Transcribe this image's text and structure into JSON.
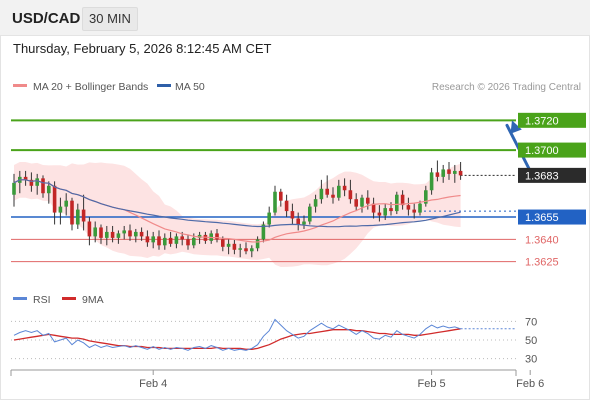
{
  "header": {
    "symbol": "USD/CAD",
    "timeframe": "30 MIN",
    "datetime": "Thursday, February 5, 2026 8:12:45 AM CET"
  },
  "legend": {
    "items": [
      {
        "label": "MA 20 + Bollinger Bands",
        "color": "#f08a8a"
      },
      {
        "label": "MA 50",
        "color": "#2e5fa8"
      }
    ],
    "credit": "Research © 2026 Trading Central"
  },
  "colors": {
    "up": "#3a9a3a",
    "down": "#c22626",
    "resistance": "#4aa31a",
    "support_strong": "#2262c4",
    "support_weak": "#e06666",
    "current": "#2b2b2b",
    "arrow": "#2f66b3",
    "band_fill": "#fde3e3",
    "ma20": "#f08a8a",
    "ma50": "#4e6aa8",
    "rsi": "#5b86d6",
    "rsi_ma": "#d12b2b"
  },
  "chart_data": {
    "type": "candlestick",
    "symbol": "USD/CAD",
    "timeframe": "30 MIN",
    "ylim": [
      1.361,
      1.3735
    ],
    "x_tick_labels": [
      {
        "label": "Feb 4",
        "index": 24
      },
      {
        "label": "Feb 5",
        "index": 72
      },
      {
        "label": "Feb 6",
        "index": 89
      }
    ],
    "levels": [
      {
        "value": 1.372,
        "label": "1.3720",
        "kind": "resistance"
      },
      {
        "value": 1.37,
        "label": "1.3700",
        "kind": "resistance"
      },
      {
        "value": 1.3683,
        "label": "1.3683",
        "kind": "current"
      },
      {
        "value": 1.3655,
        "label": "1.3655",
        "kind": "support_strong"
      },
      {
        "value": 1.364,
        "label": "1.3640",
        "kind": "support_weak"
      },
      {
        "value": 1.3625,
        "label": "1.3625",
        "kind": "support_weak"
      }
    ],
    "projection": {
      "from": [
        88,
        1.3683
      ],
      "to": [
        95,
        1.372
      ]
    },
    "series": [
      {
        "name": "MA 20 + Bollinger Bands",
        "type": "ma_band"
      },
      {
        "name": "MA 50",
        "type": "ma"
      }
    ],
    "ohlc": [
      [
        1.367,
        1.3684,
        1.3662,
        1.3678
      ],
      [
        1.3678,
        1.3686,
        1.3671,
        1.3682
      ],
      [
        1.3682,
        1.3686,
        1.3676,
        1.368
      ],
      [
        1.368,
        1.3685,
        1.3672,
        1.3676
      ],
      [
        1.3676,
        1.3684,
        1.367,
        1.3681
      ],
      [
        1.3681,
        1.3683,
        1.3668,
        1.3671
      ],
      [
        1.3671,
        1.3679,
        1.3664,
        1.3676
      ],
      [
        1.3676,
        1.3679,
        1.365,
        1.3658
      ],
      [
        1.3658,
        1.3668,
        1.365,
        1.3662
      ],
      [
        1.3662,
        1.3671,
        1.3656,
        1.3666
      ],
      [
        1.3666,
        1.3668,
        1.3646,
        1.365
      ],
      [
        1.365,
        1.3664,
        1.3647,
        1.366
      ],
      [
        1.366,
        1.367,
        1.3646,
        1.3652
      ],
      [
        1.3652,
        1.3655,
        1.3636,
        1.3642
      ],
      [
        1.3642,
        1.3652,
        1.3638,
        1.3648
      ],
      [
        1.3648,
        1.365,
        1.3637,
        1.3641
      ],
      [
        1.3641,
        1.3649,
        1.3636,
        1.3645
      ],
      [
        1.3645,
        1.3649,
        1.3638,
        1.3641
      ],
      [
        1.3641,
        1.3646,
        1.3637,
        1.3644
      ],
      [
        1.3644,
        1.3649,
        1.364,
        1.3646
      ],
      [
        1.3646,
        1.365,
        1.3639,
        1.3642
      ],
      [
        1.3642,
        1.3647,
        1.3638,
        1.3645
      ],
      [
        1.3645,
        1.3648,
        1.3639,
        1.3642
      ],
      [
        1.3642,
        1.3646,
        1.3635,
        1.3638
      ],
      [
        1.3638,
        1.3645,
        1.3634,
        1.3642
      ],
      [
        1.3642,
        1.3646,
        1.3633,
        1.3636
      ],
      [
        1.3636,
        1.3644,
        1.3633,
        1.3641
      ],
      [
        1.3641,
        1.3645,
        1.3635,
        1.3637
      ],
      [
        1.3637,
        1.3644,
        1.3634,
        1.3642
      ],
      [
        1.3642,
        1.3645,
        1.3636,
        1.364
      ],
      [
        1.364,
        1.3643,
        1.3633,
        1.3636
      ],
      [
        1.3636,
        1.3644,
        1.3634,
        1.3641
      ],
      [
        1.3641,
        1.3645,
        1.3637,
        1.3643
      ],
      [
        1.3643,
        1.3645,
        1.3637,
        1.3639
      ],
      [
        1.3639,
        1.3646,
        1.3637,
        1.3644
      ],
      [
        1.3644,
        1.3647,
        1.3638,
        1.364
      ],
      [
        1.364,
        1.3642,
        1.3632,
        1.3635
      ],
      [
        1.3635,
        1.364,
        1.363,
        1.3637
      ],
      [
        1.3637,
        1.364,
        1.363,
        1.3633
      ],
      [
        1.3633,
        1.3637,
        1.3628,
        1.3634
      ],
      [
        1.3634,
        1.3638,
        1.363,
        1.3632
      ],
      [
        1.3632,
        1.3636,
        1.3628,
        1.3634
      ],
      [
        1.3634,
        1.3642,
        1.3632,
        1.364
      ],
      [
        1.364,
        1.3652,
        1.3638,
        1.365
      ],
      [
        1.365,
        1.3662,
        1.3648,
        1.3658
      ],
      [
        1.3658,
        1.3676,
        1.3656,
        1.3672
      ],
      [
        1.3672,
        1.3674,
        1.3662,
        1.3666
      ],
      [
        1.3666,
        1.367,
        1.3655,
        1.3659
      ],
      [
        1.3659,
        1.3664,
        1.365,
        1.3654
      ],
      [
        1.3654,
        1.3658,
        1.3646,
        1.365
      ],
      [
        1.365,
        1.3656,
        1.3647,
        1.3652
      ],
      [
        1.3652,
        1.3664,
        1.365,
        1.3662
      ],
      [
        1.3662,
        1.367,
        1.3658,
        1.3667
      ],
      [
        1.3667,
        1.368,
        1.3664,
        1.3674
      ],
      [
        1.3674,
        1.3683,
        1.3668,
        1.367
      ],
      [
        1.367,
        1.3675,
        1.3664,
        1.3668
      ],
      [
        1.3668,
        1.368,
        1.3666,
        1.3676
      ],
      [
        1.3676,
        1.3681,
        1.3669,
        1.3673
      ],
      [
        1.3673,
        1.368,
        1.3664,
        1.3667
      ],
      [
        1.3667,
        1.3671,
        1.3659,
        1.3662
      ],
      [
        1.3662,
        1.367,
        1.3658,
        1.3668
      ],
      [
        1.3668,
        1.3673,
        1.366,
        1.3664
      ],
      [
        1.3664,
        1.3668,
        1.3654,
        1.3658
      ],
      [
        1.3658,
        1.3663,
        1.3652,
        1.3656
      ],
      [
        1.3656,
        1.3664,
        1.3653,
        1.3661
      ],
      [
        1.3661,
        1.3665,
        1.3656,
        1.3659
      ],
      [
        1.3659,
        1.3672,
        1.3657,
        1.367
      ],
      [
        1.367,
        1.3673,
        1.366,
        1.3663
      ],
      [
        1.3663,
        1.3668,
        1.3656,
        1.366
      ],
      [
        1.366,
        1.3664,
        1.3654,
        1.3658
      ],
      [
        1.3658,
        1.3666,
        1.3656,
        1.3664
      ],
      [
        1.3664,
        1.3676,
        1.3662,
        1.3673
      ],
      [
        1.3673,
        1.3688,
        1.367,
        1.3685
      ],
      [
        1.3685,
        1.3693,
        1.3679,
        1.3682
      ],
      [
        1.3682,
        1.369,
        1.3678,
        1.3687
      ],
      [
        1.3687,
        1.3692,
        1.368,
        1.3684
      ],
      [
        1.3684,
        1.369,
        1.3678,
        1.3686
      ],
      [
        1.3686,
        1.3692,
        1.368,
        1.3683
      ]
    ]
  },
  "rsi_panel": {
    "legend": [
      {
        "label": "RSI",
        "color": "#5b86d6"
      },
      {
        "label": "9MA",
        "color": "#d12b2b"
      }
    ],
    "ylim": [
      20,
      80
    ],
    "ticks": [
      "70",
      "50",
      "30"
    ],
    "tick_values": [
      70,
      50,
      30
    ],
    "rsi": [
      55,
      58,
      60,
      58,
      60,
      55,
      57,
      48,
      50,
      52,
      45,
      50,
      47,
      42,
      45,
      42,
      44,
      42,
      43,
      44,
      42,
      44,
      42,
      40,
      43,
      40,
      42,
      40,
      42,
      41,
      39,
      42,
      43,
      41,
      44,
      42,
      39,
      41,
      39,
      40,
      39,
      41,
      45,
      54,
      60,
      72,
      66,
      60,
      56,
      52,
      54,
      60,
      64,
      68,
      64,
      62,
      66,
      63,
      60,
      56,
      60,
      57,
      52,
      51,
      55,
      53,
      60,
      56,
      54,
      52,
      56,
      62,
      66,
      63,
      65,
      63,
      64,
      62
    ],
    "rsi_ma": [
      50,
      51,
      52,
      53,
      54,
      55,
      56,
      55,
      54,
      53,
      52,
      52,
      51,
      49,
      48,
      47,
      46,
      45,
      44,
      44,
      43,
      43,
      43,
      42,
      42,
      42,
      41,
      41,
      41,
      41,
      41,
      41,
      41,
      41,
      41,
      42,
      41,
      41,
      41,
      41,
      40,
      40,
      41,
      43,
      45,
      48,
      51,
      53,
      55,
      56,
      57,
      57,
      58,
      59,
      60,
      61,
      61,
      61,
      61,
      60,
      60,
      59,
      58,
      57,
      57,
      56,
      56,
      56,
      56,
      55,
      55,
      56,
      57,
      58,
      59,
      60,
      61,
      62
    ]
  }
}
